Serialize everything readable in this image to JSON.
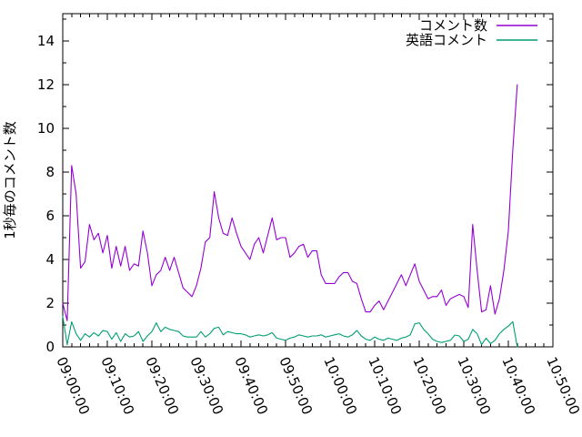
{
  "page": {
    "background": "#ffffff"
  },
  "chart_data": {
    "type": "line",
    "title": "",
    "xlabel": "",
    "ylabel": "1秒毎のコメント数",
    "x_start_time": "09:00:00",
    "x_step_seconds": 60,
    "x_end_time": "10:42:00",
    "xlim": [
      "09:00:00",
      "10:50:00"
    ],
    "ylim": [
      0,
      15.25
    ],
    "grid": false,
    "legend_position": "top-right-inside",
    "x_axis_ticks": [
      "09:00:00",
      "09:10:00",
      "09:20:00",
      "09:30:00",
      "09:40:00",
      "09:50:00",
      "10:00:00",
      "10:10:00",
      "10:20:00",
      "10:30:00",
      "10:40:00",
      "10:50:00"
    ],
    "y_axis_ticks": [
      0,
      2,
      4,
      6,
      8,
      10,
      12,
      14
    ],
    "series": [
      {
        "name": "コメント数",
        "color": "#9400d3",
        "values": [
          2.0,
          1.2,
          8.3,
          7.0,
          3.6,
          3.9,
          5.6,
          4.9,
          5.2,
          4.3,
          5.1,
          3.6,
          4.6,
          3.7,
          4.6,
          3.5,
          3.8,
          3.7,
          5.3,
          4.3,
          2.8,
          3.3,
          3.5,
          4.1,
          3.5,
          4.1,
          3.4,
          2.7,
          2.5,
          2.3,
          2.8,
          3.6,
          4.8,
          5.0,
          7.1,
          5.9,
          5.2,
          5.1,
          5.9,
          5.2,
          4.6,
          4.3,
          4.0,
          4.7,
          5.0,
          4.3,
          5.1,
          5.9,
          4.9,
          5.0,
          5.0,
          4.1,
          4.3,
          4.6,
          4.7,
          4.1,
          4.4,
          4.4,
          3.3,
          2.9,
          2.9,
          2.9,
          3.2,
          3.4,
          3.4,
          3.0,
          2.9,
          2.2,
          1.6,
          1.6,
          1.9,
          2.1,
          1.7,
          2.1,
          2.5,
          2.9,
          3.3,
          2.8,
          3.3,
          3.8,
          3.0,
          2.6,
          2.2,
          2.3,
          2.3,
          2.6,
          1.9,
          2.2,
          2.3,
          2.4,
          2.3,
          1.8,
          5.6,
          3.5,
          1.6,
          1.7,
          2.8,
          1.5,
          2.2,
          3.5,
          5.3,
          9.0,
          12.0
        ]
      },
      {
        "name": "英語コメント",
        "color": "#009e73",
        "values": [
          1.4,
          0.1,
          1.15,
          0.6,
          0.3,
          0.6,
          0.45,
          0.65,
          0.5,
          0.75,
          0.7,
          0.35,
          0.65,
          0.25,
          0.6,
          0.45,
          0.5,
          0.7,
          0.25,
          0.5,
          0.7,
          1.1,
          0.7,
          0.9,
          0.8,
          0.75,
          0.7,
          0.5,
          0.45,
          0.45,
          0.45,
          0.7,
          0.45,
          0.6,
          0.85,
          0.9,
          0.55,
          0.7,
          0.65,
          0.6,
          0.6,
          0.55,
          0.45,
          0.5,
          0.55,
          0.5,
          0.55,
          0.65,
          0.4,
          0.35,
          0.3,
          0.4,
          0.45,
          0.55,
          0.5,
          0.45,
          0.5,
          0.5,
          0.55,
          0.45,
          0.5,
          0.55,
          0.6,
          0.5,
          0.45,
          0.55,
          0.75,
          0.5,
          0.35,
          0.3,
          0.45,
          0.35,
          0.3,
          0.4,
          0.35,
          0.3,
          0.4,
          0.45,
          0.55,
          1.05,
          1.1,
          0.8,
          0.6,
          0.35,
          0.25,
          0.2,
          0.25,
          0.3,
          0.54,
          0.5,
          0.25,
          0.35,
          0.8,
          0.6,
          0.1,
          0.4,
          0.15,
          0.3,
          0.6,
          0.8,
          0.95,
          1.15,
          0.0
        ]
      }
    ]
  }
}
